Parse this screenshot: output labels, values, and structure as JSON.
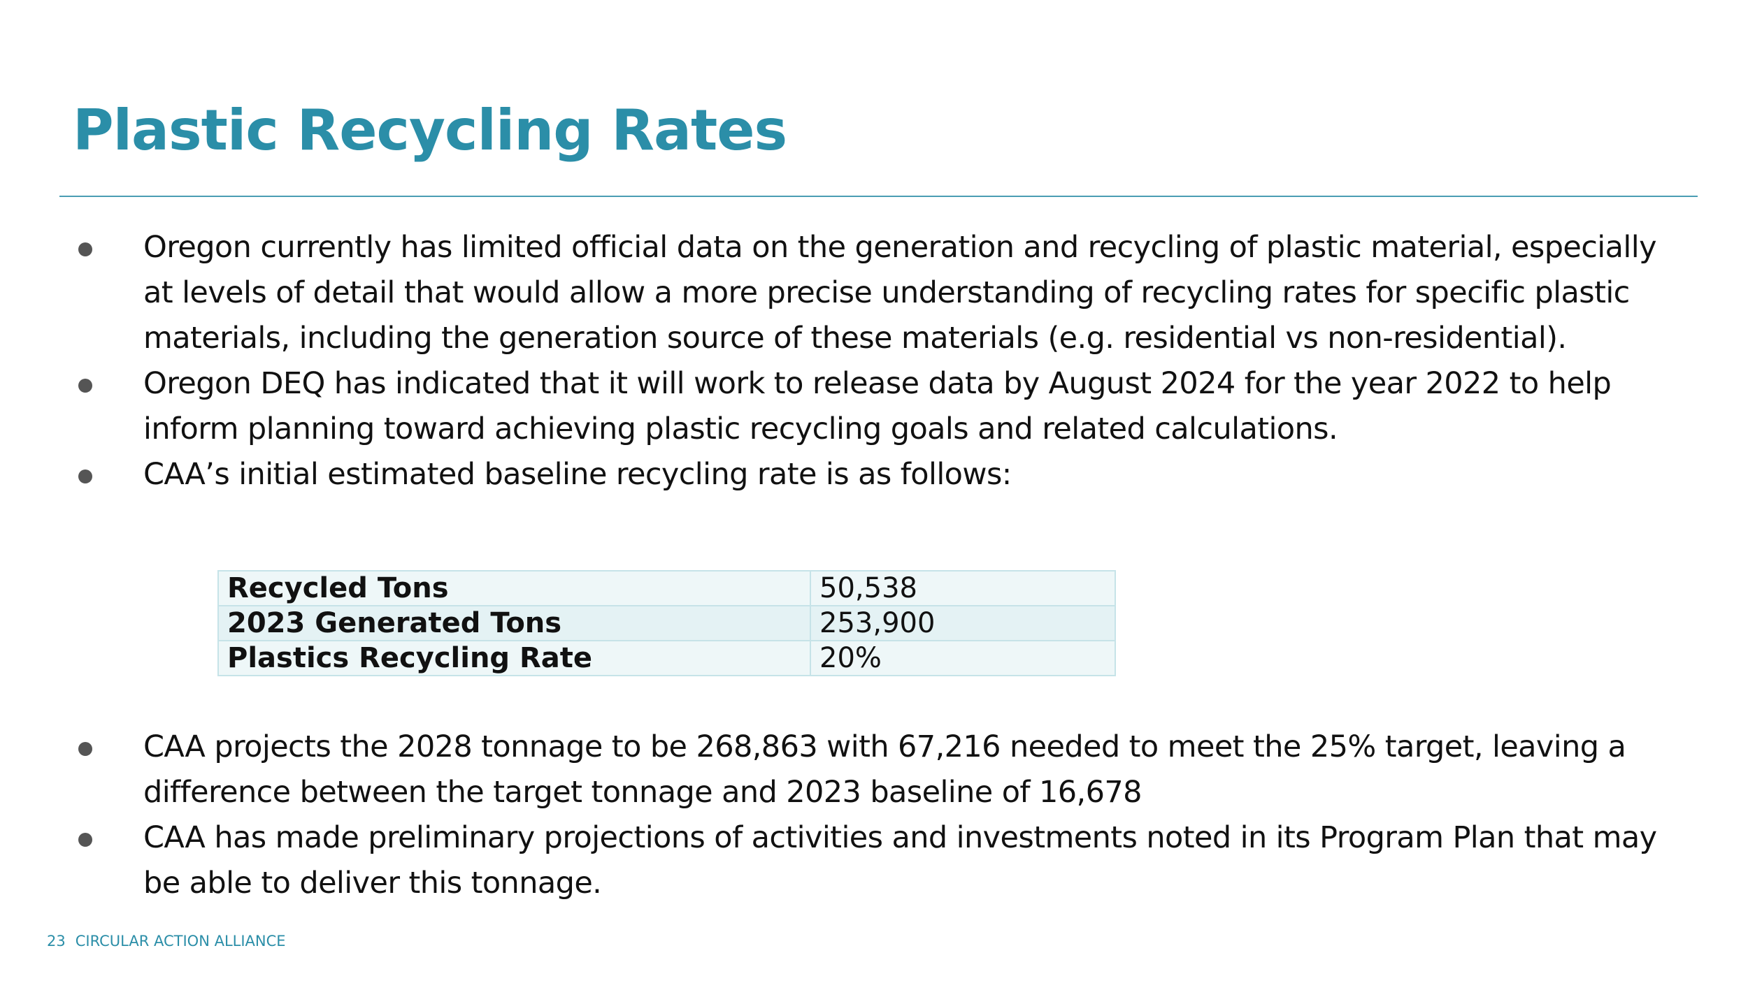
{
  "header": {
    "title": "Plastic Recycling Rates"
  },
  "bullets": [
    "Oregon currently has limited official data on the generation and recycling of plastic material, especially at levels of detail that would allow a more precise understanding of recycling rates for specific plastic materials, including the generation source of these materials (e.g. residential vs non-residential).",
    "Oregon DEQ has indicated that it will work to release data by August 2024 for the year 2022 to help inform planning toward achieving plastic recycling goals and related calculations.",
    "CAA’s initial estimated baseline recycling rate is as follows:"
  ],
  "table": {
    "rows": [
      [
        "Recycled Tons",
        "50,538"
      ],
      [
        "2023 Generated Tons",
        "253,900"
      ],
      [
        "Plastics Recycling Rate",
        "20%"
      ]
    ]
  },
  "bullets_after": [
    "CAA projects the 2028 tonnage to be 268,863 with 67,216 needed to meet the 25% target, leaving a difference between the target tonnage and 2023 baseline of 16,678",
    "CAA has made preliminary projections of activities and investments noted in its Program Plan that may be able to deliver this tonnage."
  ],
  "footer": {
    "page": "23",
    "org": "CIRCULAR ACTION ALLIANCE"
  }
}
